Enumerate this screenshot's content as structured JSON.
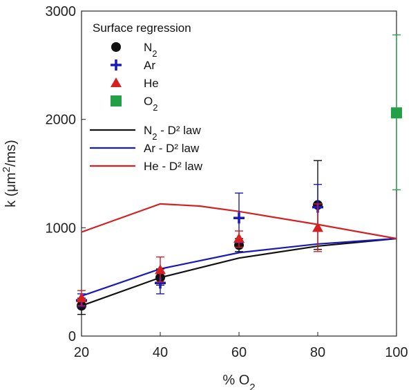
{
  "chart_data": {
    "type": "scatter",
    "xlabel": "% O",
    "xlabel_sub": "2",
    "ylabel_prefix": "k (μm",
    "ylabel_sup": "2",
    "ylabel_suffix": "/ms)",
    "xlim": [
      20,
      100
    ],
    "ylim": [
      0,
      3000
    ],
    "x_ticks": [
      20,
      40,
      60,
      80,
      100
    ],
    "y_ticks": [
      0,
      1000,
      2000,
      3000
    ],
    "grid": false,
    "legend": {
      "title": "Surface regression",
      "placement": "top-left"
    },
    "series": [
      {
        "name": "N",
        "name_sub": "2",
        "marker": "circle",
        "color": "#111111",
        "points": [
          {
            "x": 20,
            "y": 280,
            "err_lo": 200,
            "err_hi": 350
          },
          {
            "x": 40,
            "y": 540,
            "err_lo": 470,
            "err_hi": 620
          },
          {
            "x": 60,
            "y": 840,
            "err_lo": 780,
            "err_hi": 900
          },
          {
            "x": 80,
            "y": 1210,
            "err_lo": 800,
            "err_hi": 1620
          }
        ]
      },
      {
        "name": "Ar",
        "marker": "plus",
        "color": "#1a1ab8",
        "points": [
          {
            "x": 20,
            "y": 330,
            "err_lo": 270,
            "err_hi": 390
          },
          {
            "x": 40,
            "y": 490,
            "err_lo": 390,
            "err_hi": 580
          },
          {
            "x": 60,
            "y": 1090,
            "err_lo": 860,
            "err_hi": 1320
          },
          {
            "x": 80,
            "y": 1190,
            "err_lo": 980,
            "err_hi": 1400
          }
        ]
      },
      {
        "name": "He",
        "marker": "triangle",
        "color": "#d42020",
        "points": [
          {
            "x": 20,
            "y": 350,
            "err_lo": 280,
            "err_hi": 420
          },
          {
            "x": 40,
            "y": 610,
            "err_lo": 500,
            "err_hi": 730
          },
          {
            "x": 60,
            "y": 900,
            "err_lo": 820,
            "err_hi": 970
          },
          {
            "x": 80,
            "y": 1000,
            "err_lo": 780,
            "err_hi": 1220
          }
        ]
      },
      {
        "name": "O",
        "name_sub": "2",
        "marker": "square",
        "color": "#22a046",
        "points": [
          {
            "x": 100,
            "y": 2060,
            "err_lo": 1350,
            "err_hi": 2780
          }
        ]
      }
    ],
    "lines": [
      {
        "name": "N",
        "name_sub": "2",
        "name_suffix": " - D² law",
        "color": "#111111",
        "x": [
          20,
          40,
          60,
          80,
          100
        ],
        "y": [
          280,
          540,
          720,
          830,
          900
        ]
      },
      {
        "name": "Ar - D² law",
        "color": "#1a1ab8",
        "x": [
          20,
          40,
          60,
          80,
          100
        ],
        "y": [
          370,
          620,
          770,
          850,
          900
        ]
      },
      {
        "name": "He - D² law",
        "color": "#d42020",
        "x": [
          20,
          40,
          50,
          60,
          80,
          100
        ],
        "y": [
          960,
          1220,
          1200,
          1150,
          1030,
          900
        ]
      }
    ]
  }
}
